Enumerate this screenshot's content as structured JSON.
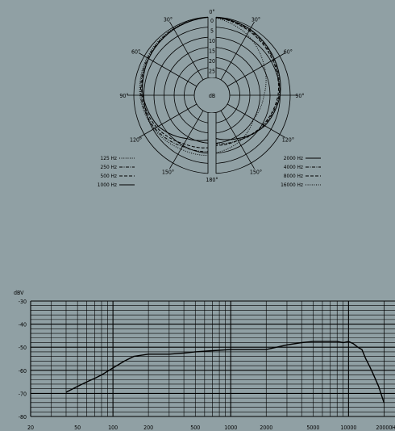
{
  "chart_data": [
    {
      "type": "polar",
      "radial_labels": [
        "0",
        "5",
        "10",
        "15",
        "20",
        "25",
        "dB"
      ],
      "angle_labels_right": [
        "0°",
        "30°",
        "60°",
        "90°",
        "120°",
        "150°",
        "180°"
      ],
      "angle_labels_left": [
        "30°",
        "60°",
        "90°",
        "120°",
        "150°"
      ],
      "legend": {
        "left": [
          {
            "label": "125  Hz",
            "style": "dotted"
          },
          {
            "label": "250  Hz",
            "style": "dash-dot"
          },
          {
            "label": "500  Hz",
            "style": "dashed"
          },
          {
            "label": "1000  Hz",
            "style": "solid"
          }
        ],
        "right": [
          {
            "label": "2000  Hz",
            "style": "solid"
          },
          {
            "label": "4000  Hz",
            "style": "dash-dot"
          },
          {
            "label": "8000  Hz",
            "style": "dashed"
          },
          {
            "label": "16000  Hz",
            "style": "dotted"
          }
        ]
      },
      "series": [
        {
          "name": "125  Hz",
          "angles": [
            0,
            30,
            60,
            90,
            120,
            150,
            180
          ],
          "values": [
            0,
            0.5,
            1.5,
            3,
            5.5,
            8,
            9
          ]
        },
        {
          "name": "250  Hz",
          "angles": [
            0,
            30,
            60,
            90,
            120,
            150,
            180
          ],
          "values": [
            0,
            0.8,
            2,
            3.5,
            6,
            9.5,
            11
          ]
        },
        {
          "name": "500  Hz",
          "angles": [
            0,
            30,
            60,
            90,
            120,
            150,
            180
          ],
          "values": [
            0,
            1,
            2.5,
            4,
            7,
            11,
            13
          ]
        },
        {
          "name": "1000  Hz",
          "angles": [
            0,
            30,
            60,
            90,
            120,
            150,
            180
          ],
          "values": [
            0,
            1,
            2.5,
            4.5,
            8,
            14,
            17
          ]
        },
        {
          "name": "2000  Hz",
          "angles": [
            0,
            30,
            60,
            90,
            120,
            150,
            180
          ],
          "values": [
            0,
            1,
            3,
            5,
            8.5,
            14,
            18
          ]
        },
        {
          "name": "4000  Hz",
          "angles": [
            0,
            30,
            60,
            90,
            120,
            150,
            180
          ],
          "values": [
            0,
            1.5,
            3.5,
            5.5,
            9,
            13,
            15
          ]
        },
        {
          "name": "8000  Hz",
          "angles": [
            0,
            30,
            60,
            90,
            120,
            150,
            180
          ],
          "values": [
            0,
            2,
            4,
            6,
            9.5,
            13,
            14
          ]
        },
        {
          "name": "16000  Hz",
          "angles": [
            0,
            30,
            60,
            90,
            120,
            150,
            180
          ],
          "values": [
            0,
            4,
            9,
            13,
            15,
            12,
            10
          ]
        }
      ]
    },
    {
      "type": "line",
      "ylabel": "dBV",
      "xscale": "log",
      "xlim": [
        20,
        20000
      ],
      "ylim": [
        -80,
        -30
      ],
      "x_ticks": [
        "20",
        "50",
        "100",
        "200",
        "500",
        "1000",
        "2000",
        "5000",
        "10000",
        "20000"
      ],
      "y_ticks": [
        "-30",
        "-40",
        "-50",
        "-60",
        "-70",
        "-80"
      ],
      "x_unit": "Hz",
      "series": [
        {
          "x": [
            40,
            50,
            60,
            70,
            80,
            100,
            125,
            150,
            200,
            300,
            400,
            500,
            700,
            1000,
            1500,
            2000,
            3000,
            4000,
            5000,
            6000,
            8000,
            9000,
            10000,
            11000,
            12000,
            13000,
            14000,
            15000,
            16000,
            18000,
            20000
          ],
          "y": [
            -69.5,
            -67,
            -65,
            -63.5,
            -62,
            -59,
            -56,
            -54,
            -53,
            -53,
            -52.5,
            -52,
            -51.5,
            -51,
            -51,
            -51,
            -49,
            -48,
            -47.5,
            -47.5,
            -47.5,
            -48,
            -47.5,
            -48.5,
            -50,
            -51,
            -55,
            -58,
            -61,
            -67,
            -74
          ]
        }
      ]
    }
  ]
}
